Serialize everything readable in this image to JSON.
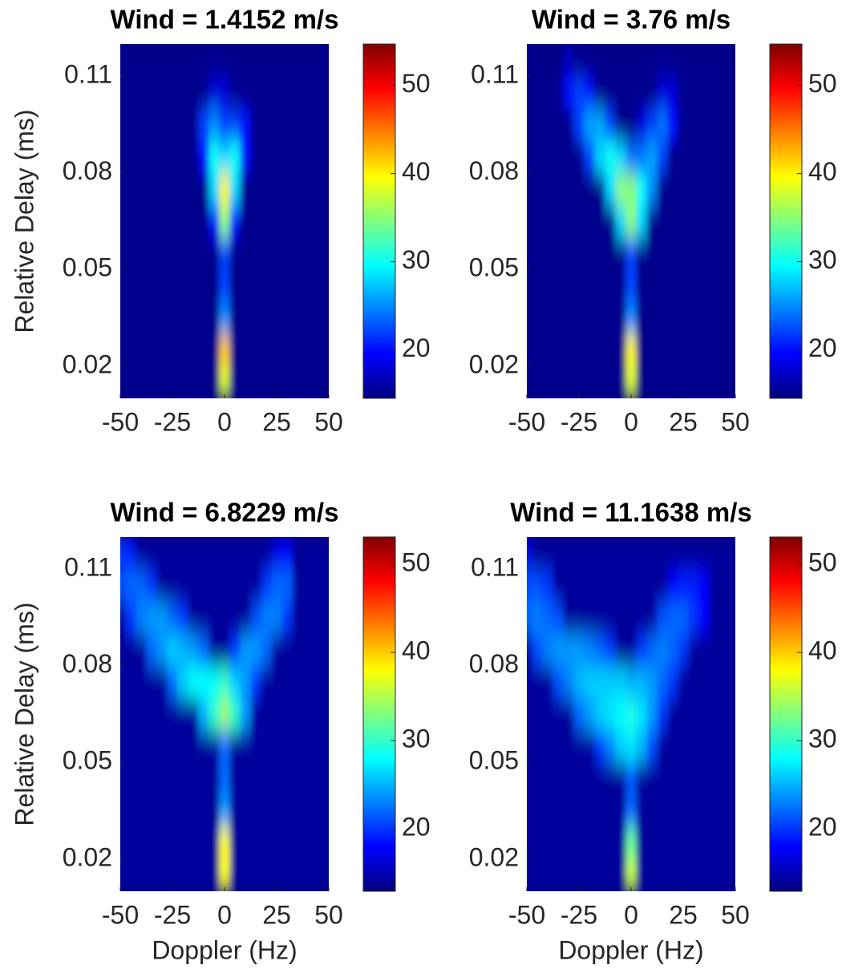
{
  "chart_data": [
    {
      "type": "heatmap",
      "title": "Wind = 1.4152 m/s",
      "ylabel": "Relative Delay (ms)",
      "colormap": "jet",
      "x": [
        -50,
        -45,
        -40,
        -35,
        -30,
        -25,
        -20,
        -15,
        -10,
        -5,
        0,
        5,
        10,
        15,
        20,
        25,
        30,
        35,
        40,
        45,
        50
      ],
      "y": [
        0.015,
        0.025,
        0.035,
        0.045,
        0.055,
        0.065,
        0.075,
        0.085,
        0.095,
        0.105,
        0.115
      ],
      "z": [
        [
          15,
          15,
          15,
          15,
          15,
          15,
          15,
          15,
          15,
          15,
          38,
          15,
          15,
          15,
          15,
          15,
          15,
          15,
          15,
          15,
          15
        ],
        [
          15,
          15,
          15,
          15,
          15,
          15,
          15,
          15,
          15,
          15,
          42,
          15,
          15,
          15,
          15,
          15,
          15,
          15,
          15,
          15,
          15
        ],
        [
          15,
          15,
          15,
          15,
          15,
          15,
          15,
          15,
          15,
          15,
          25,
          15,
          15,
          15,
          15,
          15,
          15,
          15,
          15,
          15,
          15
        ],
        [
          15,
          15,
          15,
          15,
          15,
          15,
          15,
          15,
          15,
          15,
          22,
          15,
          15,
          15,
          15,
          15,
          15,
          15,
          15,
          15,
          15
        ],
        [
          15,
          15,
          15,
          15,
          15,
          15,
          15,
          15,
          15,
          15,
          22,
          15,
          15,
          15,
          15,
          15,
          15,
          15,
          15,
          15,
          15
        ],
        [
          15,
          15,
          15,
          15,
          15,
          15,
          15,
          15,
          15,
          20,
          35,
          20,
          15,
          15,
          15,
          15,
          15,
          15,
          15,
          15,
          15
        ],
        [
          15,
          15,
          15,
          15,
          15,
          15,
          15,
          15,
          15,
          28,
          40,
          28,
          15,
          15,
          15,
          15,
          15,
          15,
          15,
          15,
          15
        ],
        [
          15,
          15,
          15,
          15,
          15,
          15,
          15,
          15,
          20,
          30,
          28,
          30,
          20,
          15,
          15,
          15,
          15,
          15,
          15,
          15,
          15
        ],
        [
          15,
          15,
          15,
          15,
          15,
          15,
          15,
          15,
          22,
          25,
          22,
          22,
          20,
          15,
          15,
          15,
          15,
          15,
          15,
          15,
          15
        ],
        [
          15,
          15,
          15,
          15,
          15,
          15,
          15,
          15,
          15,
          18,
          18,
          15,
          15,
          15,
          15,
          15,
          15,
          15,
          15,
          15,
          15
        ],
        [
          15,
          15,
          15,
          15,
          15,
          15,
          15,
          15,
          15,
          15,
          15,
          15,
          15,
          15,
          15,
          15,
          15,
          15,
          15,
          15,
          15
        ]
      ],
      "xlim": [
        -50,
        50
      ],
      "ylim": [
        0.01,
        0.12
      ],
      "xticks": [
        -50,
        -25,
        0,
        25,
        50
      ],
      "yticks": [
        0.02,
        0.05,
        0.08,
        0.11
      ],
      "clim": [
        14.5,
        54.7
      ],
      "cticks": [
        20,
        30,
        40,
        50
      ]
    },
    {
      "type": "heatmap",
      "title": "Wind = 3.76 m/s",
      "colormap": "jet",
      "x": [
        -50,
        -45,
        -40,
        -35,
        -30,
        -25,
        -20,
        -15,
        -10,
        -5,
        0,
        5,
        10,
        15,
        20,
        25,
        30,
        35,
        40,
        45,
        50
      ],
      "y": [
        0.015,
        0.025,
        0.035,
        0.045,
        0.055,
        0.065,
        0.075,
        0.085,
        0.095,
        0.105,
        0.115
      ],
      "z": [
        [
          15,
          15,
          15,
          15,
          15,
          15,
          15,
          15,
          15,
          15,
          38,
          15,
          15,
          15,
          15,
          15,
          15,
          15,
          15,
          15,
          15
        ],
        [
          15,
          15,
          15,
          15,
          15,
          15,
          15,
          15,
          15,
          15,
          40,
          15,
          15,
          15,
          15,
          15,
          15,
          15,
          15,
          15,
          15
        ],
        [
          15,
          15,
          15,
          15,
          15,
          15,
          15,
          15,
          15,
          15,
          25,
          15,
          15,
          15,
          15,
          15,
          15,
          15,
          15,
          15,
          15
        ],
        [
          15,
          15,
          15,
          15,
          15,
          15,
          15,
          15,
          15,
          15,
          22,
          15,
          15,
          15,
          15,
          15,
          15,
          15,
          15,
          15,
          15
        ],
        [
          15,
          15,
          15,
          15,
          15,
          15,
          15,
          15,
          15,
          15,
          22,
          15,
          15,
          15,
          15,
          15,
          15,
          15,
          15,
          15,
          15
        ],
        [
          15,
          15,
          15,
          15,
          15,
          15,
          15,
          15,
          15,
          28,
          35,
          28,
          15,
          15,
          15,
          15,
          15,
          15,
          15,
          15,
          15
        ],
        [
          15,
          15,
          15,
          15,
          15,
          15,
          15,
          15,
          28,
          35,
          35,
          30,
          25,
          15,
          15,
          15,
          15,
          15,
          15,
          15,
          15
        ],
        [
          15,
          15,
          15,
          15,
          15,
          15,
          22,
          28,
          30,
          28,
          24,
          24,
          26,
          22,
          15,
          15,
          15,
          15,
          15,
          15,
          15
        ],
        [
          15,
          15,
          15,
          15,
          15,
          22,
          26,
          26,
          22,
          15,
          15,
          18,
          22,
          24,
          20,
          15,
          15,
          15,
          15,
          15,
          15
        ],
        [
          15,
          15,
          15,
          15,
          20,
          22,
          20,
          15,
          15,
          15,
          15,
          15,
          15,
          18,
          18,
          15,
          15,
          15,
          15,
          15,
          15
        ],
        [
          15,
          15,
          15,
          15,
          17,
          15,
          15,
          15,
          15,
          15,
          15,
          15,
          15,
          15,
          15,
          15,
          15,
          15,
          15,
          15,
          15
        ]
      ],
      "xlim": [
        -50,
        50
      ],
      "ylim": [
        0.01,
        0.12
      ],
      "xticks": [
        -50,
        -25,
        0,
        25,
        50
      ],
      "yticks": [
        0.02,
        0.05,
        0.08,
        0.11
      ],
      "clim": [
        14.5,
        54.7
      ],
      "cticks": [
        20,
        30,
        40,
        50
      ]
    },
    {
      "type": "heatmap",
      "title": "Wind = 6.8229 m/s",
      "xlabel": "Doppler (Hz)",
      "ylabel": "Relative Delay (ms)",
      "colormap": "jet",
      "x": [
        -50,
        -45,
        -40,
        -35,
        -30,
        -25,
        -20,
        -15,
        -10,
        -5,
        0,
        5,
        10,
        15,
        20,
        25,
        30,
        35,
        40,
        45,
        50
      ],
      "y": [
        0.015,
        0.025,
        0.035,
        0.045,
        0.055,
        0.065,
        0.075,
        0.085,
        0.095,
        0.105,
        0.115
      ],
      "z": [
        [
          14,
          14,
          14,
          14,
          14,
          14,
          14,
          14,
          14,
          14,
          38,
          14,
          14,
          14,
          14,
          14,
          14,
          14,
          14,
          14,
          14
        ],
        [
          14,
          14,
          14,
          14,
          14,
          14,
          14,
          14,
          14,
          14,
          38,
          14,
          14,
          14,
          14,
          14,
          14,
          14,
          14,
          14,
          14
        ],
        [
          14,
          14,
          14,
          14,
          14,
          14,
          14,
          14,
          14,
          14,
          24,
          14,
          14,
          14,
          14,
          14,
          14,
          14,
          14,
          14,
          14
        ],
        [
          14,
          14,
          14,
          14,
          14,
          14,
          14,
          14,
          14,
          14,
          22,
          14,
          14,
          14,
          14,
          14,
          14,
          14,
          14,
          14,
          14
        ],
        [
          14,
          14,
          14,
          14,
          14,
          14,
          14,
          14,
          14,
          14,
          22,
          14,
          14,
          14,
          14,
          14,
          14,
          14,
          14,
          14,
          14
        ],
        [
          14,
          14,
          14,
          14,
          14,
          14,
          14,
          14,
          25,
          30,
          34,
          30,
          24,
          14,
          14,
          14,
          14,
          14,
          14,
          14,
          14
        ],
        [
          14,
          14,
          14,
          14,
          14,
          22,
          26,
          28,
          28,
          28,
          30,
          26,
          24,
          20,
          14,
          14,
          14,
          14,
          14,
          14,
          14
        ],
        [
          14,
          14,
          14,
          22,
          24,
          26,
          25,
          24,
          22,
          14,
          14,
          20,
          24,
          24,
          22,
          14,
          14,
          14,
          14,
          14,
          14
        ],
        [
          14,
          20,
          23,
          24,
          24,
          22,
          20,
          14,
          14,
          14,
          14,
          14,
          14,
          21,
          23,
          23,
          20,
          14,
          14,
          14,
          14
        ],
        [
          21,
          22,
          22,
          20,
          14,
          14,
          14,
          14,
          14,
          14,
          14,
          14,
          14,
          14,
          20,
          22,
          22,
          14,
          14,
          14,
          14
        ],
        [
          20,
          19,
          14,
          14,
          14,
          14,
          14,
          14,
          14,
          14,
          14,
          14,
          14,
          14,
          14,
          17,
          18,
          14,
          14,
          14,
          14
        ]
      ],
      "xlim": [
        -50,
        50
      ],
      "ylim": [
        0.01,
        0.12
      ],
      "xticks": [
        -50,
        -25,
        0,
        25,
        50
      ],
      "yticks": [
        0.02,
        0.05,
        0.08,
        0.11
      ],
      "clim": [
        12.9,
        53.1
      ],
      "cticks": [
        20,
        30,
        40,
        50
      ]
    },
    {
      "type": "heatmap",
      "title": "Wind = 11.1638 m/s",
      "xlabel": "Doppler (Hz)",
      "colormap": "jet",
      "x": [
        -50,
        -45,
        -40,
        -35,
        -30,
        -25,
        -20,
        -15,
        -10,
        -5,
        0,
        5,
        10,
        15,
        20,
        25,
        30,
        35,
        40,
        45,
        50
      ],
      "y": [
        0.015,
        0.025,
        0.035,
        0.045,
        0.055,
        0.065,
        0.075,
        0.085,
        0.095,
        0.105,
        0.115
      ],
      "z": [
        [
          14,
          14,
          14,
          14,
          14,
          14,
          14,
          14,
          14,
          14,
          36,
          14,
          14,
          14,
          14,
          14,
          14,
          14,
          14,
          14,
          14
        ],
        [
          14,
          14,
          14,
          14,
          14,
          14,
          14,
          14,
          14,
          14,
          32,
          14,
          14,
          14,
          14,
          14,
          14,
          14,
          14,
          14,
          14
        ],
        [
          14,
          14,
          14,
          14,
          14,
          14,
          14,
          14,
          14,
          14,
          22,
          14,
          14,
          14,
          14,
          14,
          14,
          14,
          14,
          14,
          14
        ],
        [
          14,
          14,
          14,
          14,
          14,
          14,
          14,
          14,
          14,
          14,
          21,
          14,
          14,
          14,
          14,
          14,
          14,
          14,
          14,
          14,
          14
        ],
        [
          14,
          14,
          14,
          14,
          14,
          14,
          14,
          20,
          23,
          26,
          27,
          25,
          21,
          14,
          14,
          14,
          14,
          14,
          14,
          14,
          14
        ],
        [
          14,
          14,
          14,
          14,
          14,
          22,
          24,
          26,
          27,
          28,
          29,
          27,
          24,
          20,
          14,
          14,
          14,
          14,
          14,
          14,
          14
        ],
        [
          14,
          14,
          14,
          21,
          23,
          25,
          26,
          26,
          26,
          26,
          25,
          25,
          24,
          22,
          20,
          14,
          14,
          14,
          14,
          14,
          14
        ],
        [
          14,
          21,
          23,
          24,
          24,
          24,
          23,
          22,
          20,
          14,
          14,
          20,
          22,
          23,
          22,
          20,
          14,
          14,
          14,
          14,
          14
        ],
        [
          22,
          23,
          22,
          21,
          14,
          14,
          14,
          14,
          14,
          14,
          14,
          14,
          14,
          21,
          22,
          22,
          20,
          18,
          14,
          14,
          14
        ],
        [
          21,
          21,
          20,
          14,
          14,
          14,
          14,
          14,
          14,
          14,
          14,
          14,
          14,
          14,
          18,
          19,
          19,
          18,
          14,
          14,
          14
        ],
        [
          17,
          14,
          14,
          14,
          14,
          14,
          14,
          14,
          14,
          14,
          14,
          14,
          14,
          14,
          14,
          14,
          14,
          14,
          14,
          14,
          14
        ]
      ],
      "xlim": [
        -50,
        50
      ],
      "ylim": [
        0.01,
        0.12
      ],
      "xticks": [
        -50,
        -25,
        0,
        25,
        50
      ],
      "yticks": [
        0.02,
        0.05,
        0.08,
        0.11
      ],
      "clim": [
        12.9,
        53.1
      ],
      "cticks": [
        20,
        30,
        40,
        50
      ]
    }
  ]
}
